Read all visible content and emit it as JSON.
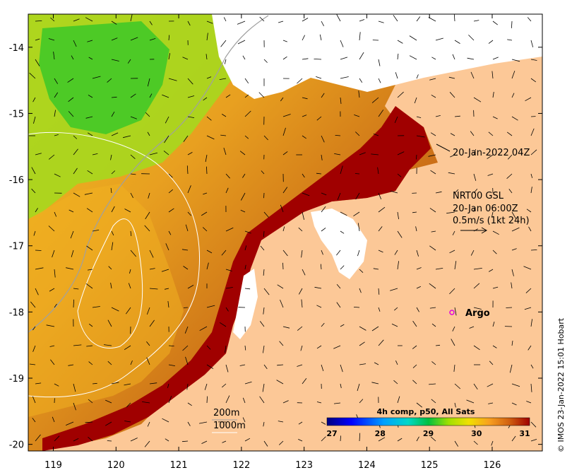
{
  "map": {
    "lon_ticks": [
      "119",
      "120",
      "121",
      "122",
      "123",
      "124",
      "125",
      "126"
    ],
    "lat_ticks": [
      "-14",
      "-15",
      "-16",
      "-17",
      "-18",
      "-19",
      "-20"
    ],
    "lon_range": [
      118.6,
      126.8
    ],
    "lat_range": [
      -20.1,
      -13.5
    ]
  },
  "annotations": {
    "date_label": "20-Jan-2022 04Z",
    "current_title": "NRT00 GSL",
    "current_time": "20-Jan 06:00Z",
    "current_scale": "0.5m/s (1kt 24h)",
    "argo_label": "Argo",
    "isobath_200": "200m",
    "isobath_1000": "1000m"
  },
  "colorbar": {
    "title": "4h comp, p50, All Sats",
    "ticks": [
      "27",
      "28",
      "29",
      "30",
      "31"
    ],
    "range": [
      27,
      31
    ]
  },
  "credit": "© IMOS 23-Jan-2022 15:01 Hobart",
  "colors": {
    "land": "#fcc897",
    "missing": "#ffffff",
    "warmest": "#a00000",
    "argo_marker": "#e000e0"
  }
}
